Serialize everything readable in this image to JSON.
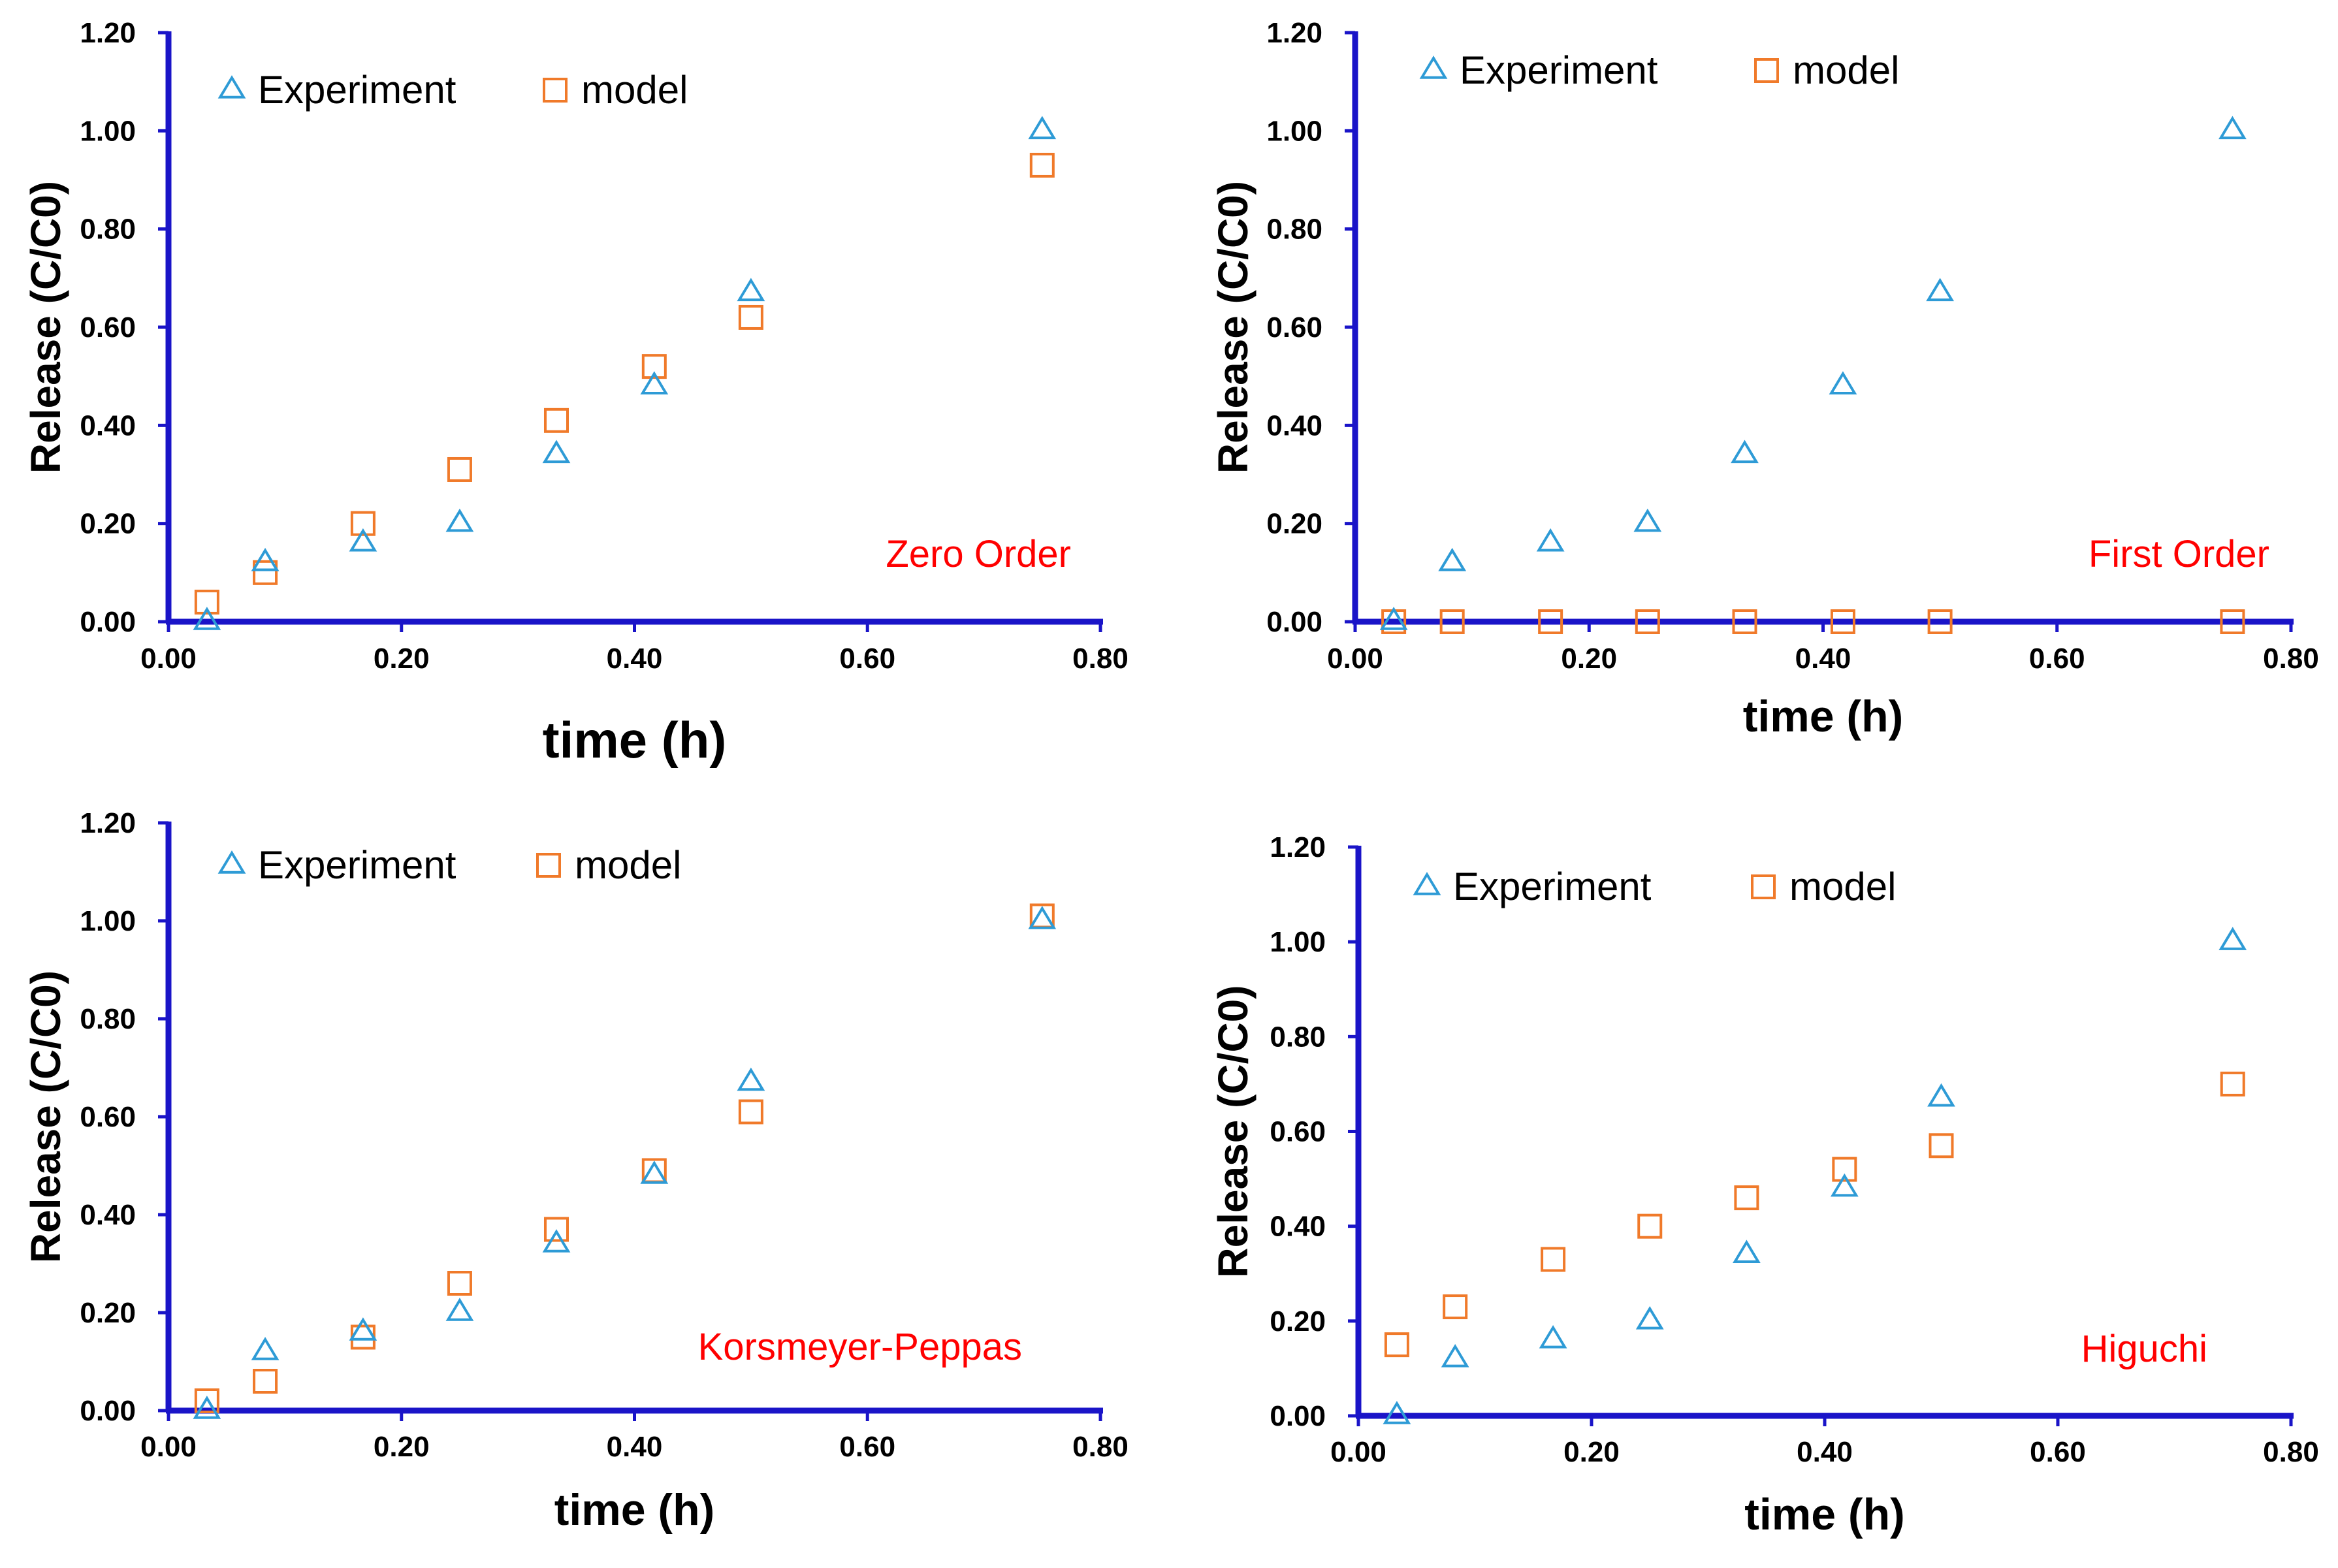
{
  "legend": {
    "experiment_label": "Experiment",
    "model_label": "model"
  },
  "colors": {
    "experiment": "#2E9BD6",
    "model": "#F07A2A",
    "axis": "#1A14C8",
    "annotation": "#FF0000"
  },
  "chart_data": [
    {
      "type": "scatter",
      "title": "Zero Order",
      "xlabel": "time (h)",
      "ylabel": "Release (C/C0)",
      "xlim": [
        0,
        0.8
      ],
      "ylim": [
        0,
        1.2
      ],
      "x_ticks": [
        "0.00",
        "0.20",
        "0.40",
        "0.60",
        "0.80"
      ],
      "y_ticks": [
        "0.00",
        "0.20",
        "0.40",
        "0.60",
        "0.80",
        "1.00",
        "1.20"
      ],
      "series": [
        {
          "name": "Experiment",
          "marker": "triangle",
          "x": [
            0.033,
            0.083,
            0.167,
            0.25,
            0.333,
            0.417,
            0.5,
            0.75
          ],
          "y": [
            0.0,
            0.12,
            0.16,
            0.2,
            0.34,
            0.48,
            0.67,
            1.0
          ]
        },
        {
          "name": "model",
          "marker": "square",
          "x": [
            0.033,
            0.083,
            0.167,
            0.25,
            0.333,
            0.417,
            0.5,
            0.75
          ],
          "y": [
            0.04,
            0.1,
            0.2,
            0.31,
            0.41,
            0.52,
            0.62,
            0.93
          ]
        }
      ]
    },
    {
      "type": "scatter",
      "title": "First Order",
      "xlabel": "time (h)",
      "ylabel": "Release (C/C0)",
      "xlim": [
        0,
        0.8
      ],
      "ylim": [
        0,
        1.2
      ],
      "x_ticks": [
        "0.00",
        "0.20",
        "0.40",
        "0.60",
        "0.80"
      ],
      "y_ticks": [
        "0.00",
        "0.20",
        "0.40",
        "0.60",
        "0.80",
        "1.00",
        "1.20"
      ],
      "series": [
        {
          "name": "Experiment",
          "marker": "triangle",
          "x": [
            0.033,
            0.083,
            0.167,
            0.25,
            0.333,
            0.417,
            0.5,
            0.75
          ],
          "y": [
            0.0,
            0.12,
            0.16,
            0.2,
            0.34,
            0.48,
            0.67,
            1.0
          ]
        },
        {
          "name": "model",
          "marker": "square",
          "x": [
            0.033,
            0.083,
            0.167,
            0.25,
            0.333,
            0.417,
            0.5,
            0.75
          ],
          "y": [
            0.0,
            0.0,
            0.0,
            0.0,
            0.0,
            0.0,
            0.0,
            0.0
          ]
        }
      ]
    },
    {
      "type": "scatter",
      "title": "Korsmeyer-Peppas",
      "xlabel": "time (h)",
      "ylabel": "Release (C/C0)",
      "xlim": [
        0,
        0.8
      ],
      "ylim": [
        0,
        1.2
      ],
      "x_ticks": [
        "0.00",
        "0.20",
        "0.40",
        "0.60",
        "0.80"
      ],
      "y_ticks": [
        "0.00",
        "0.20",
        "0.40",
        "0.60",
        "0.80",
        "1.00",
        "1.20"
      ],
      "series": [
        {
          "name": "Experiment",
          "marker": "triangle",
          "x": [
            0.033,
            0.083,
            0.167,
            0.25,
            0.333,
            0.417,
            0.5,
            0.75
          ],
          "y": [
            0.0,
            0.12,
            0.16,
            0.2,
            0.34,
            0.48,
            0.67,
            1.0
          ]
        },
        {
          "name": "model",
          "marker": "square",
          "x": [
            0.033,
            0.083,
            0.167,
            0.25,
            0.333,
            0.417,
            0.5,
            0.75
          ],
          "y": [
            0.02,
            0.06,
            0.15,
            0.26,
            0.37,
            0.49,
            0.61,
            1.01
          ]
        }
      ]
    },
    {
      "type": "scatter",
      "title": "Higuchi",
      "xlabel": "time (h)",
      "ylabel": "Release (C/C0)",
      "xlim": [
        0,
        0.8
      ],
      "ylim": [
        0,
        1.2
      ],
      "x_ticks": [
        "0.00",
        "0.20",
        "0.40",
        "0.60",
        "0.80"
      ],
      "y_ticks": [
        "0.00",
        "0.20",
        "0.40",
        "0.60",
        "0.80",
        "1.00",
        "1.20"
      ],
      "series": [
        {
          "name": "Experiment",
          "marker": "triangle",
          "x": [
            0.033,
            0.083,
            0.167,
            0.25,
            0.333,
            0.417,
            0.5,
            0.75
          ],
          "y": [
            0.0,
            0.12,
            0.16,
            0.2,
            0.34,
            0.48,
            0.67,
            1.0
          ]
        },
        {
          "name": "model",
          "marker": "square",
          "x": [
            0.033,
            0.083,
            0.167,
            0.25,
            0.333,
            0.417,
            0.5,
            0.75
          ],
          "y": [
            0.15,
            0.23,
            0.33,
            0.4,
            0.46,
            0.52,
            0.57,
            0.7
          ]
        }
      ]
    }
  ]
}
